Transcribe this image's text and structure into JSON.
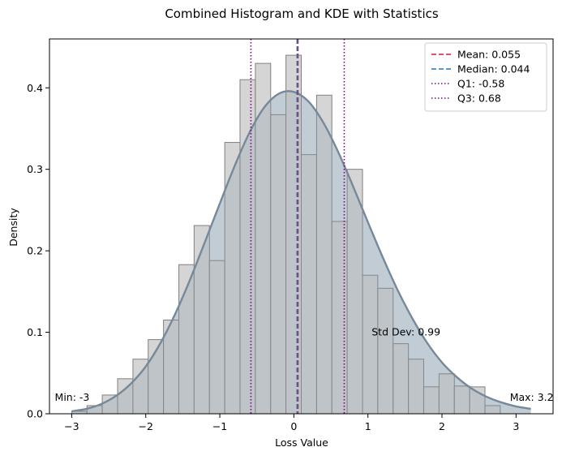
{
  "chart_data": {
    "type": "histogram",
    "title": "Combined Histogram and KDE with Statistics",
    "xlabel": "Loss Value",
    "ylabel": "Density",
    "xlim": [
      -3.3,
      3.5
    ],
    "ylim": [
      0,
      0.46
    ],
    "xticks": [
      -3,
      -2,
      -1,
      0,
      1,
      2,
      3
    ],
    "xtick_labels": [
      "−3",
      "−2",
      "−1",
      "0",
      "1",
      "2",
      "3"
    ],
    "yticks": [
      0.0,
      0.1,
      0.2,
      0.3,
      0.4
    ],
    "ytick_labels": [
      "0.0",
      "0.1",
      "0.2",
      "0.3",
      "0.4"
    ],
    "grid": false,
    "histogram": {
      "bin_edges": [
        -3.0,
        -2.793,
        -2.587,
        -2.38,
        -2.173,
        -1.967,
        -1.76,
        -1.553,
        -1.347,
        -1.14,
        -0.933,
        -0.727,
        -0.52,
        -0.313,
        -0.107,
        0.1,
        0.307,
        0.513,
        0.72,
        0.927,
        1.133,
        1.34,
        1.547,
        1.753,
        1.96,
        2.167,
        2.373,
        2.58,
        2.787,
        2.993,
        3.2
      ],
      "density": [
        0.003,
        0.01,
        0.023,
        0.043,
        0.067,
        0.091,
        0.115,
        0.183,
        0.231,
        0.188,
        0.333,
        0.41,
        0.43,
        0.367,
        0.44,
        0.318,
        0.391,
        0.236,
        0.3,
        0.17,
        0.154,
        0.086,
        0.067,
        0.033,
        0.049,
        0.034,
        0.033,
        0.01,
        0.0,
        0.0
      ],
      "fill_color": "#d3d3d3",
      "edge_color": "#808080"
    },
    "kde": {
      "x": [
        -3.0,
        -2.8,
        -2.6,
        -2.4,
        -2.2,
        -2.0,
        -1.8,
        -1.6,
        -1.4,
        -1.2,
        -1.0,
        -0.8,
        -0.6,
        -0.4,
        -0.2,
        0.0,
        0.2,
        0.4,
        0.6,
        0.8,
        1.0,
        1.2,
        1.4,
        1.6,
        1.8,
        2.0,
        2.2,
        2.4,
        2.6,
        2.8,
        3.0,
        3.2
      ],
      "y": [
        0.003,
        0.006,
        0.012,
        0.022,
        0.037,
        0.058,
        0.087,
        0.123,
        0.165,
        0.211,
        0.258,
        0.304,
        0.345,
        0.376,
        0.393,
        0.395,
        0.383,
        0.357,
        0.321,
        0.279,
        0.235,
        0.192,
        0.152,
        0.117,
        0.087,
        0.063,
        0.045,
        0.031,
        0.021,
        0.014,
        0.009,
        0.006
      ],
      "line_color": "#778899",
      "fill_color": "#b0bfcf"
    },
    "stat_lines": [
      {
        "name": "Mean: 0.055",
        "x": 0.055,
        "color": "#dc143c",
        "style": "dashed"
      },
      {
        "name": "Median: 0.044",
        "x": 0.044,
        "color": "#1f77b4",
        "style": "dashed"
      },
      {
        "name": "Q1: -0.58",
        "x": -0.58,
        "color": "#800080",
        "style": "dotted"
      },
      {
        "name": "Q3: 0.68",
        "x": 0.68,
        "color": "#800080",
        "style": "dotted"
      }
    ],
    "legend_position": "top-right",
    "annotations": [
      {
        "text": "Min: -3",
        "x": -3.0,
        "y": 0.02,
        "anchor": "end"
      },
      {
        "text": "Max: 3.2",
        "x": 3.2,
        "y": 0.02,
        "anchor": "end"
      },
      {
        "text": "Std Dev: 0.99",
        "x": 1.05,
        "y": 0.1,
        "anchor": "start"
      }
    ]
  }
}
